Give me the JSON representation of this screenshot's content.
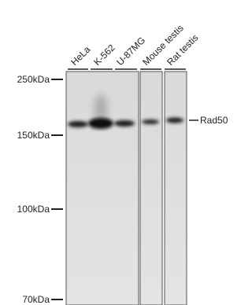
{
  "lanes": [
    "HeLa",
    "K-562",
    "U-87MG",
    "Mouse testis",
    "Rat testis"
  ],
  "markers": [
    "250kDa",
    "150kDa",
    "100kDa",
    "70kDa"
  ],
  "band_label": "Rad50"
}
